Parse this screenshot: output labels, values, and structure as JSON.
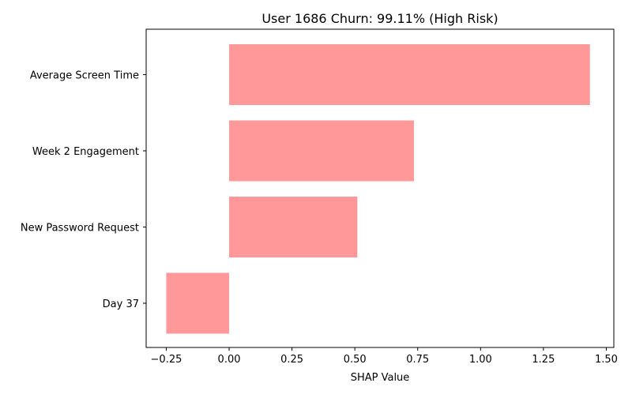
{
  "chart_data": {
    "type": "bar",
    "orientation": "horizontal",
    "title": "User 1686 Churn: 99.11% (High Risk)",
    "xlabel": "SHAP Value",
    "ylabel": "",
    "categories": [
      "Average Screen Time",
      "Week 2 Engagement",
      "New Password Request",
      "Day 37"
    ],
    "values": [
      1.435,
      0.735,
      0.51,
      -0.25
    ],
    "xlim": [
      -0.33,
      1.53
    ],
    "xticks": [
      -0.25,
      0.0,
      0.25,
      0.5,
      0.75,
      1.0,
      1.25,
      1.5
    ],
    "xtick_labels": [
      "−0.25",
      "0.00",
      "0.25",
      "0.50",
      "0.75",
      "1.00",
      "1.25",
      "1.50"
    ],
    "grid": false,
    "legend": "none",
    "bar_color": "#ff9999"
  }
}
